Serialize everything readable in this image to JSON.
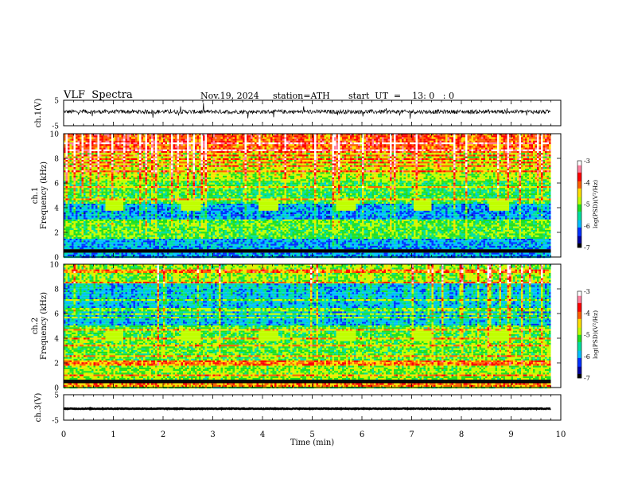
{
  "header": {
    "title": "VLF  Spectra",
    "date": "Nov.19, 2024",
    "station": "station=ATH",
    "start": "start  UT  =    13: 0   : 0"
  },
  "chart_data": [
    {
      "type": "line",
      "panel": "ch1-waveform",
      "ylabel": "ch.1(V)",
      "ylim": [
        -5,
        5
      ],
      "yticks": [
        "5",
        "-5"
      ],
      "xlim": [
        0,
        10
      ],
      "trace_level": 0.5
    },
    {
      "type": "heatmap",
      "panel": "ch1-spectrogram",
      "ylabel": [
        "ch.1",
        "Frequency  (kHz)"
      ],
      "ylim": [
        0,
        10
      ],
      "yticks": [
        "0",
        "2",
        "4",
        "6",
        "8",
        "10"
      ],
      "xlim": [
        0,
        10
      ],
      "data_end_min": 9.8,
      "colorbar": {
        "label": "log(PSD)(V²/Hz)",
        "range": [
          -7,
          -3
        ],
        "ticks": [
          "-3",
          "-4",
          "-5",
          "-6",
          "-7"
        ]
      }
    },
    {
      "type": "heatmap",
      "panel": "ch2-spectrogram",
      "ylabel": [
        "ch.2",
        "Frequency  (kHz)"
      ],
      "ylim": [
        0,
        10
      ],
      "yticks": [
        "0",
        "2",
        "4",
        "6",
        "8",
        "10"
      ],
      "xlim": [
        0,
        10
      ],
      "data_end_min": 9.8,
      "colorbar": {
        "label": "log(PSD)(V²/Hz)",
        "range": [
          -7,
          -3
        ],
        "ticks": [
          "-3",
          "-4",
          "-5",
          "-6",
          "-7"
        ]
      }
    },
    {
      "type": "line",
      "panel": "ch3-waveform",
      "ylabel": "ch.3(V)",
      "ylim": [
        -5,
        5
      ],
      "yticks": [
        "5",
        "-5"
      ],
      "xlim": [
        0,
        10
      ],
      "trace_level": -0.5
    }
  ],
  "xaxis": {
    "label": "Time  (min)",
    "ticks": [
      "0",
      "1",
      "2",
      "3",
      "4",
      "5",
      "6",
      "7",
      "8",
      "9",
      "10"
    ]
  },
  "colors": {
    "scale": [
      "#000000",
      "#0000a0",
      "#0030ff",
      "#00c0ff",
      "#00e0a0",
      "#20e020",
      "#c0ff00",
      "#ffe000",
      "#ff6000",
      "#ff0000",
      "#ff80a0",
      "#ffffff"
    ]
  }
}
